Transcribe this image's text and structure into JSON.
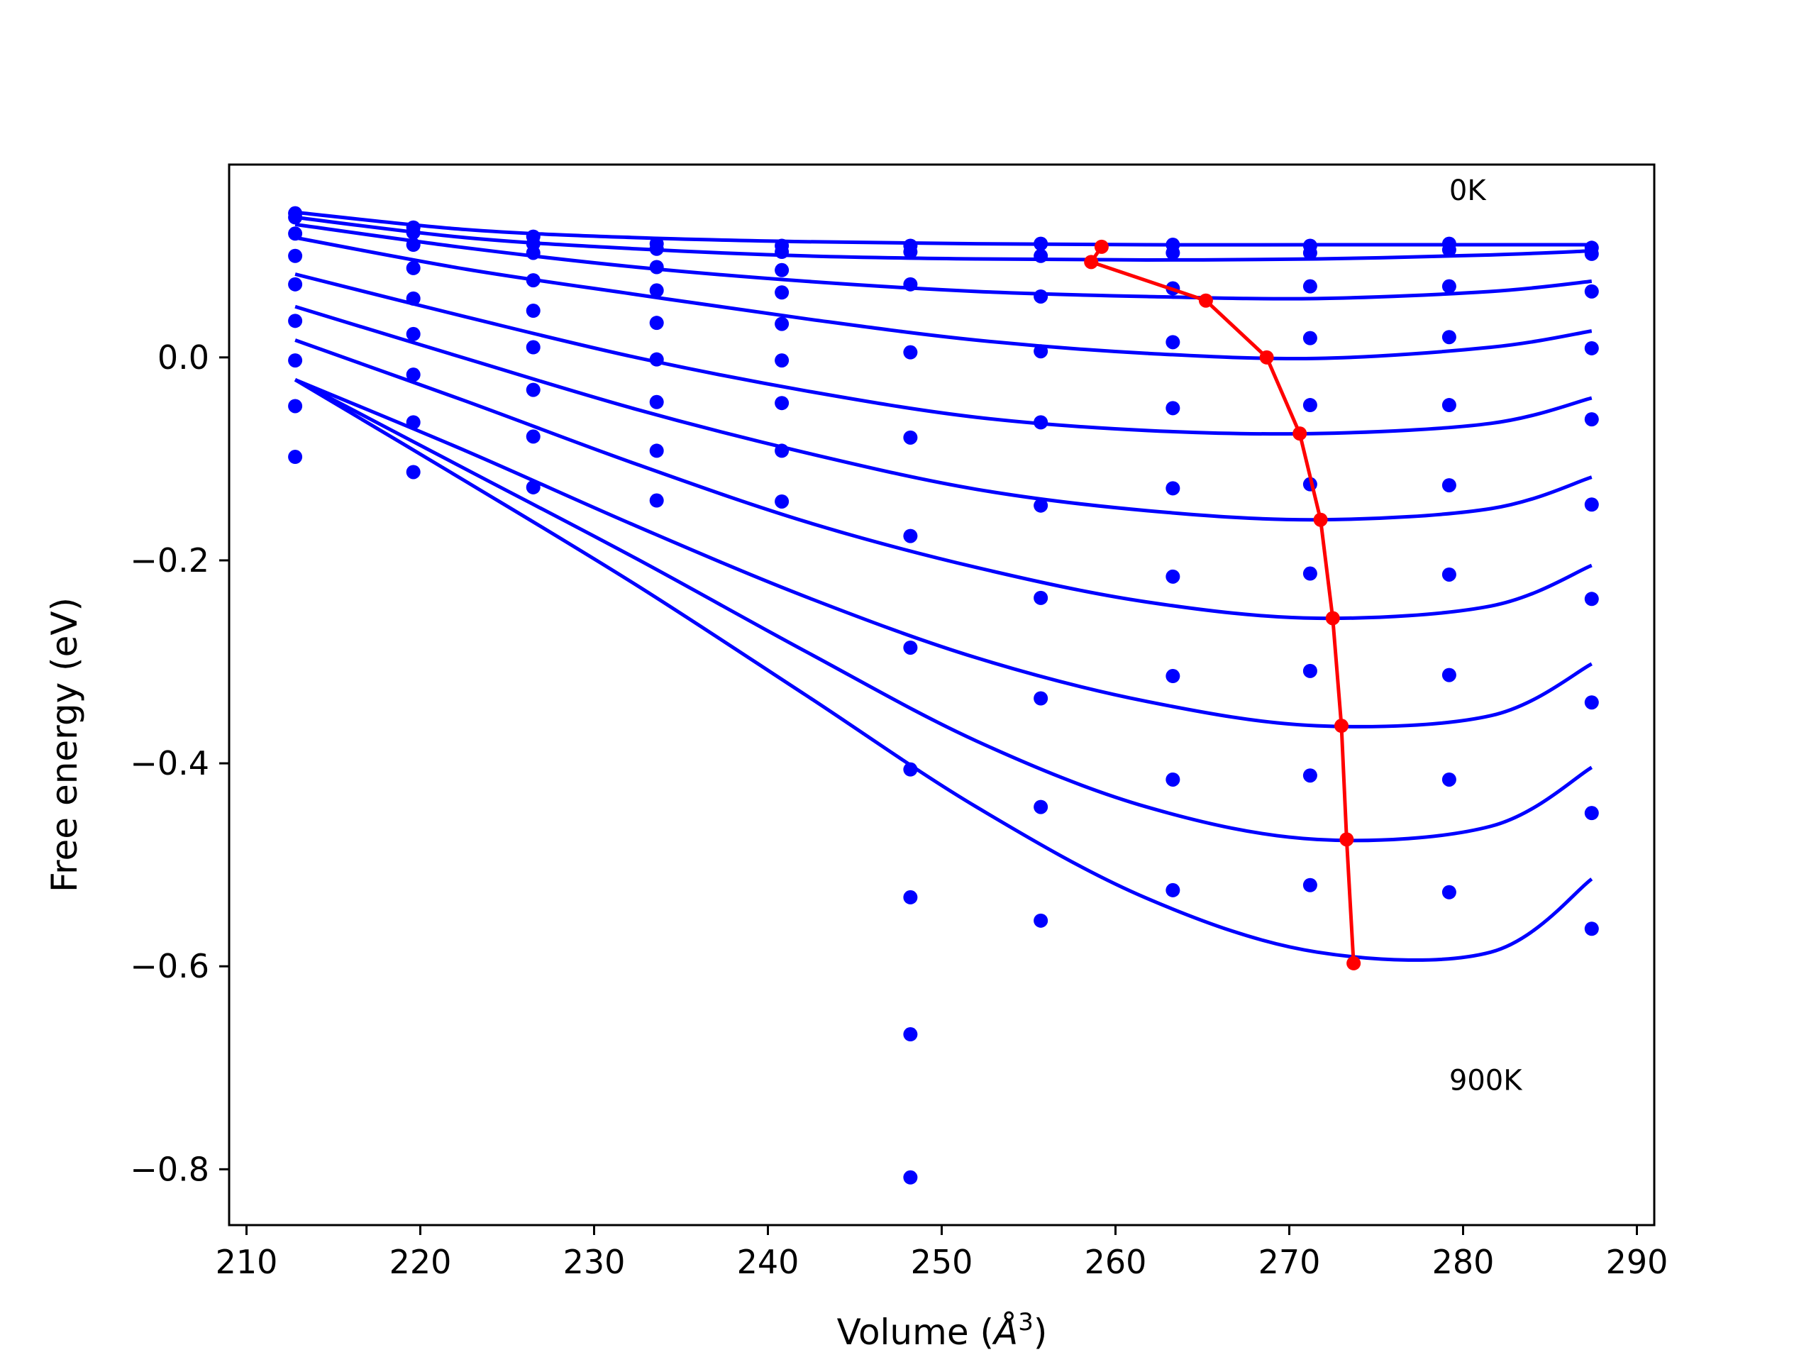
{
  "chart_data": {
    "type": "line",
    "xlabel": "Volume (Å³)",
    "xlabel_text": "Volume (",
    "xlabel_sym": "Å",
    "xlabel_sup": "3",
    "xlabel_close": ")",
    "ylabel": "Free energy (eV)",
    "xlim": [
      209,
      291
    ],
    "ylim": [
      -0.855,
      0.19
    ],
    "xticks": [
      210,
      220,
      230,
      240,
      250,
      260,
      270,
      280,
      290
    ],
    "xtick_labels": [
      "210",
      "220",
      "230",
      "240",
      "250",
      "260",
      "270",
      "280",
      "290"
    ],
    "yticks": [
      0.0,
      -0.2,
      -0.4,
      -0.6,
      -0.8
    ],
    "ytick_labels": [
      "0.0",
      "−0.2",
      "−0.4",
      "−0.6",
      "−0.8"
    ],
    "annotations": [
      {
        "text": "0K",
        "x": 279.2,
        "y": 0.155
      },
      {
        "text": "900K",
        "x": 279.2,
        "y": -0.722
      }
    ],
    "colors": {
      "fit": "#0000ff",
      "points": "#0000ff",
      "minimum_path": "#ff0000"
    },
    "grid": false,
    "legend": "none",
    "point_volumes": [
      212.8,
      219.6,
      226.5,
      233.6,
      240.8,
      248.2,
      255.7,
      263.3,
      271.2,
      279.2,
      287.4
    ],
    "point_series": [
      [
        0.142,
        0.128,
        0.119,
        0.112,
        0.11,
        0.11,
        0.112,
        0.111,
        0.11,
        0.112,
        0.108
      ],
      [
        0.138,
        0.123,
        0.112,
        0.107,
        0.104,
        0.104,
        0.1,
        0.103,
        0.103,
        0.106,
        0.102
      ],
      [
        0.122,
        0.111,
        0.103,
        0.089,
        0.086,
        null,
        null,
        null,
        null,
        null,
        null
      ],
      [
        0.1,
        0.088,
        0.076,
        0.066,
        0.064,
        0.072,
        0.06,
        0.068,
        0.07,
        0.07,
        0.065
      ],
      [
        0.072,
        0.058,
        0.046,
        0.034,
        0.033,
        null,
        null,
        null,
        null,
        null,
        null
      ],
      [
        0.036,
        0.023,
        0.01,
        -0.002,
        -0.003,
        0.005,
        0.006,
        0.015,
        0.019,
        0.02,
        0.009
      ],
      [
        -0.003,
        -0.017,
        -0.032,
        -0.044,
        -0.045,
        -0.079,
        -0.064,
        -0.05,
        -0.047,
        -0.047,
        -0.061
      ],
      [
        -0.048,
        -0.064,
        -0.078,
        -0.092,
        -0.092,
        null,
        -0.146,
        -0.129,
        -0.125,
        -0.126,
        -0.145
      ],
      [
        -0.098,
        -0.113,
        -0.128,
        -0.141,
        -0.142,
        -0.176,
        -0.237,
        -0.216,
        -0.213,
        -0.214,
        -0.238
      ],
      [
        null,
        null,
        null,
        null,
        null,
        -0.286,
        -0.336,
        -0.314,
        -0.309,
        -0.313,
        -0.34
      ],
      [
        null,
        null,
        null,
        null,
        null,
        -0.406,
        -0.443,
        -0.416,
        -0.412,
        -0.416,
        -0.449
      ],
      [
        null,
        null,
        null,
        null,
        null,
        -0.532,
        -0.555,
        -0.525,
        -0.52,
        -0.527,
        -0.563
      ],
      [
        null,
        null,
        null,
        null,
        null,
        -0.667,
        null,
        null,
        null,
        null,
        null
      ],
      [
        null,
        null,
        null,
        null,
        null,
        -0.808,
        null,
        null,
        null,
        null,
        null
      ]
    ],
    "fit_x": [
      212.8,
      222.6,
      232.4,
      242.2,
      252.0,
      261.8,
      271.6,
      281.6,
      287.4
    ],
    "fit_curves": [
      {
        "x_min": 212.8,
        "y": [
          0.143,
          0.126,
          0.118,
          0.114,
          0.112,
          0.111,
          0.111,
          0.111,
          0.111
        ]
      },
      {
        "x_min": 212.8,
        "y": [
          0.138,
          0.118,
          0.107,
          0.1,
          0.097,
          0.096,
          0.097,
          0.101,
          0.105
        ]
      },
      {
        "x_min": 212.8,
        "y": [
          0.131,
          0.108,
          0.089,
          0.075,
          0.065,
          0.06,
          0.058,
          0.065,
          0.075
        ]
      },
      {
        "x_min": 212.8,
        "y": [
          0.118,
          0.087,
          0.062,
          0.038,
          0.017,
          0.004,
          -0.001,
          0.01,
          0.026
        ]
      },
      {
        "x_min": 212.8,
        "y": [
          0.082,
          0.04,
          0.0,
          -0.033,
          -0.059,
          -0.072,
          -0.075,
          -0.065,
          -0.04
        ]
      },
      {
        "x_min": 212.8,
        "y": [
          0.05,
          -0.001,
          -0.051,
          -0.094,
          -0.13,
          -0.151,
          -0.16,
          -0.149,
          -0.118
        ]
      },
      {
        "x_min": 212.8,
        "y": [
          0.017,
          -0.043,
          -0.105,
          -0.162,
          -0.207,
          -0.241,
          -0.257,
          -0.245,
          -0.205
        ]
      },
      {
        "x_min": 212.8,
        "y": [
          -0.022,
          -0.092,
          -0.166,
          -0.236,
          -0.296,
          -0.339,
          -0.363,
          -0.353,
          -0.302
        ]
      },
      {
        "x_min": 212.8,
        "y": [
          -0.022,
          -0.11,
          -0.198,
          -0.29,
          -0.378,
          -0.443,
          -0.475,
          -0.462,
          -0.404
        ]
      },
      {
        "x_min": 212.8,
        "y": [
          -0.022,
          -0.122,
          -0.224,
          -0.333,
          -0.443,
          -0.533,
          -0.586,
          -0.586,
          -0.514
        ]
      }
    ],
    "minimum_path": {
      "x": [
        259.2,
        258.6,
        265.2,
        268.7,
        270.6,
        271.8,
        272.5,
        273.0,
        273.3,
        273.7
      ],
      "y": [
        0.109,
        0.094,
        0.056,
        0.0,
        -0.075,
        -0.16,
        -0.257,
        -0.363,
        -0.475,
        -0.597
      ]
    }
  }
}
